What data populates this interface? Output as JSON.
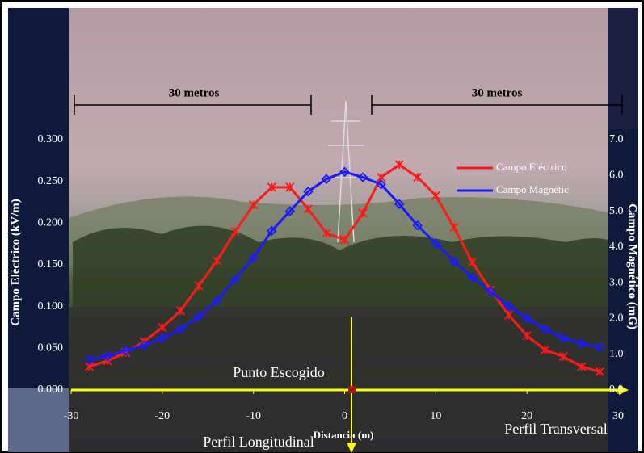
{
  "chart_data": {
    "type": "line",
    "ylabel": "Campo Eléctrico (kV/m)",
    "y2label": "Campo Magnético (mG)",
    "xlabel": "Distancia (m)",
    "annotations": [
      "30 metros",
      "30 metros",
      "Punto Escogido",
      "Perfil Longitudinal",
      "Perfil Transversal"
    ],
    "xlim": [
      -30,
      30
    ],
    "xticks": [
      -30,
      -20,
      -10,
      0,
      10,
      20,
      30
    ],
    "ylim": [
      0,
      0.3
    ],
    "yticks": [
      {
        "value": 0,
        "label": "0.000"
      },
      {
        "value": 0.05,
        "label": "0.050"
      },
      {
        "value": 0.1,
        "label": "0.100"
      },
      {
        "value": 0.15,
        "label": "0.150"
      },
      {
        "value": 0.2,
        "label": "0.200"
      },
      {
        "value": 0.25,
        "label": "0.250"
      },
      {
        "value": 0.3,
        "label": "0.300"
      }
    ],
    "y2lim": [
      0,
      7
    ],
    "y2ticks": [
      {
        "value": 0,
        "label": "0.0"
      },
      {
        "value": 1,
        "label": "1.0"
      },
      {
        "value": 2,
        "label": "2.0"
      },
      {
        "value": 3,
        "label": "3.0"
      },
      {
        "value": 4,
        "label": "4.0"
      },
      {
        "value": 5,
        "label": "5.0"
      },
      {
        "value": 6,
        "label": "6.0"
      },
      {
        "value": 7,
        "label": "7.0"
      }
    ],
    "x": [
      -28,
      -26,
      -24,
      -22,
      -20,
      -18,
      -16,
      -14,
      -12,
      -10,
      -8,
      -6,
      -4,
      -2,
      0,
      2,
      4,
      6,
      8,
      10,
      12,
      14,
      16,
      18,
      20,
      22,
      24,
      26,
      28
    ],
    "series": [
      {
        "name": "Campo Eléctrico",
        "color": "#ff1a1a",
        "values": [
          0.028,
          0.035,
          0.045,
          0.058,
          0.075,
          0.095,
          0.125,
          0.155,
          0.19,
          0.222,
          0.243,
          0.243,
          0.217,
          0.188,
          0.18,
          0.212,
          0.255,
          0.27,
          0.255,
          0.233,
          0.195,
          0.153,
          0.12,
          0.09,
          0.065,
          0.048,
          0.04,
          0.028,
          0.022
        ]
      },
      {
        "name": "Campo Magnétic",
        "color": "#1a1aff",
        "axis": "y2",
        "values": [
          0.85,
          0.95,
          1.1,
          1.25,
          1.45,
          1.7,
          2.05,
          2.5,
          3.1,
          3.7,
          4.45,
          5.0,
          5.55,
          5.9,
          6.1,
          5.95,
          5.75,
          5.2,
          4.6,
          4.1,
          3.6,
          3.15,
          2.75,
          2.35,
          2.0,
          1.7,
          1.45,
          1.3,
          1.2
        ]
      }
    ]
  }
}
